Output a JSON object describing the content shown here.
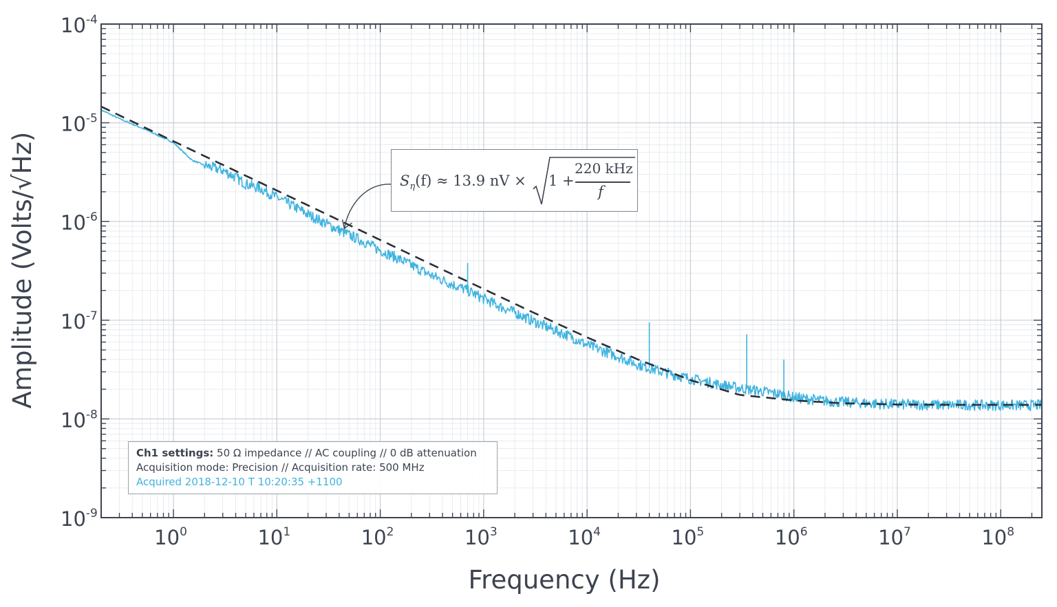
{
  "chart_data": {
    "type": "line",
    "title": "",
    "xlabel": "Frequency (Hz)",
    "ylabel": "Amplitude (Volts/√Hz)",
    "xscale": "log",
    "yscale": "log",
    "xlim": [
      0.2,
      250000000
    ],
    "ylim": [
      1e-09,
      0.0001
    ],
    "grid": true,
    "x_ticks": [
      {
        "base": "10",
        "exp": "0"
      },
      {
        "base": "10",
        "exp": "1"
      },
      {
        "base": "10",
        "exp": "2"
      },
      {
        "base": "10",
        "exp": "3"
      },
      {
        "base": "10",
        "exp": "4"
      },
      {
        "base": "10",
        "exp": "5"
      },
      {
        "base": "10",
        "exp": "6"
      },
      {
        "base": "10",
        "exp": "7"
      },
      {
        "base": "10",
        "exp": "8"
      }
    ],
    "y_ticks": [
      {
        "base": "10",
        "exp": "-9"
      },
      {
        "base": "10",
        "exp": "-8"
      },
      {
        "base": "10",
        "exp": "-7"
      },
      {
        "base": "10",
        "exp": "-6"
      },
      {
        "base": "10",
        "exp": "-5"
      },
      {
        "base": "10",
        "exp": "-4"
      }
    ],
    "series": [
      {
        "style": "solid",
        "color": "#3fb3e0",
        "x": [
          0.2,
          0.3,
          0.5,
          0.7,
          1.0,
          1.5,
          2,
          3,
          4,
          5,
          7,
          10,
          15,
          20,
          30,
          50,
          70,
          100,
          150,
          200,
          300,
          500,
          700,
          1000,
          1500,
          2000,
          3000,
          5000,
          7000,
          10000,
          15000,
          20000,
          30000,
          50000,
          70000,
          100000,
          150000,
          200000,
          300000,
          500000,
          700000,
          1000000,
          1500000,
          2000000,
          3000000,
          5000000,
          7000000,
          10000000,
          15000000,
          20000000,
          30000000,
          50000000,
          70000000,
          100000000,
          150000000,
          250000000
        ],
        "y": [
          1.35e-05,
          1.1e-05,
          8.8e-06,
          7.5e-06,
          6.3e-06,
          4.2e-06,
          3.7e-06,
          3.3e-06,
          2.8e-06,
          2.4e-06,
          2.15e-06,
          1.75e-06,
          1.4e-06,
          1.18e-06,
          9.5e-07,
          7.3e-07,
          6.2e-07,
          5.1e-07,
          4.2e-07,
          3.6e-07,
          2.9e-07,
          2.3e-07,
          2e-07,
          1.65e-07,
          1.35e-07,
          1.2e-07,
          9.8e-08,
          7.8e-08,
          6.8e-08,
          5.6e-08,
          4.8e-08,
          4.3e-08,
          3.6e-08,
          3.05e-08,
          2.8e-08,
          2.55e-08,
          2.35e-08,
          2.2e-08,
          2.05e-08,
          1.9e-08,
          1.8e-08,
          1.65e-08,
          1.58e-08,
          1.52e-08,
          1.48e-08,
          1.44e-08,
          1.42e-08,
          1.4e-08,
          1.4e-08,
          1.39e-08,
          1.38e-08,
          1.39e-08,
          1.37e-08,
          1.38e-08,
          1.37e-08,
          1.38e-08
        ],
        "spikes": [
          {
            "x": 700,
            "y": 3.8e-07
          },
          {
            "x": 40000,
            "y": 9.5e-08
          },
          {
            "x": 350000,
            "y": 7.2e-08
          },
          {
            "x": 800000,
            "y": 4e-08
          }
        ]
      },
      {
        "style": "dashed",
        "color": "#2a2f36",
        "x": [
          0.2,
          0.5,
          1,
          3,
          10,
          30,
          100,
          300,
          1000,
          3000,
          10000,
          30000,
          100000,
          300000,
          1000000,
          3000000,
          10000000,
          30000000,
          100000000,
          250000000
        ],
        "y": [
          1.46e-05,
          9.2e-06,
          6.5e-06,
          3.75e-06,
          2.06e-06,
          1.19e-06,
          6.5e-07,
          3.75e-07,
          2.07e-07,
          1.2e-07,
          6.7e-08,
          4.06e-08,
          2.47e-08,
          1.75e-08,
          1.54e-08,
          1.44e-08,
          1.4e-08,
          1.39e-08,
          1.39e-08,
          1.39e-08
        ]
      }
    ],
    "annotation": {
      "lhs_prefix": "S",
      "lhs_sub": "η",
      "lhs_suffix": "(f) ≈ 13.9 nV ×",
      "one_plus": "1 +",
      "numerator": "220 kHz",
      "denominator": "f",
      "arrow_target": {
        "x": 45,
        "y": 8.5e-07
      }
    }
  },
  "info_box": {
    "line1_bold": "Ch1 settings:",
    "line1_rest": " 50 Ω impedance  //  AC coupling  //  0 dB attenuation",
    "line2": "Acquisition mode: Precision  //  Acquisition rate: 500 MHz",
    "line3": "Acquired 2018-12-10 T 10:20:35 +1100",
    "line3_color": "#3fb3e0"
  }
}
